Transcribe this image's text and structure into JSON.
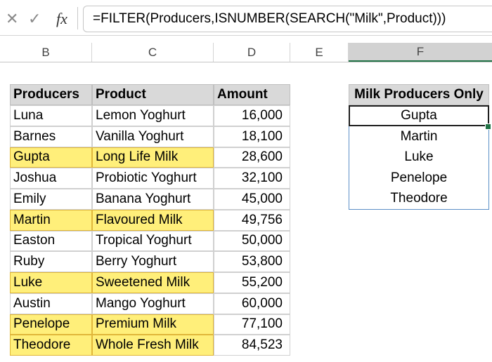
{
  "formula_bar": {
    "cancel_icon": "close-icon",
    "enter_icon": "check-icon",
    "function_label": "fx",
    "formula": "=FILTER(Producers,ISNUMBER(SEARCH(\"Milk\",Product)))"
  },
  "column_headers": {
    "B": "B",
    "C": "C",
    "D": "D",
    "E": "E",
    "F": "F",
    "selected": "F"
  },
  "table": {
    "headers": {
      "producers": "Producers",
      "product": "Product",
      "amount": "Amount"
    },
    "rows": [
      {
        "producer": "Luna",
        "product": "Lemon Yoghurt",
        "amount": "16,000",
        "milk": false
      },
      {
        "producer": "Barnes",
        "product": "Vanilla Yoghurt",
        "amount": "18,100",
        "milk": false
      },
      {
        "producer": "Gupta",
        "product": "Long Life Milk",
        "amount": "28,600",
        "milk": true
      },
      {
        "producer": "Joshua",
        "product": "Probiotic Yoghurt",
        "amount": "32,100",
        "milk": false
      },
      {
        "producer": "Emily",
        "product": "Banana Yoghurt",
        "amount": "45,000",
        "milk": false
      },
      {
        "producer": "Martin",
        "product": "Flavoured Milk",
        "amount": "49,756",
        "milk": true
      },
      {
        "producer": "Easton",
        "product": "Tropical Yoghurt",
        "amount": "50,000",
        "milk": false
      },
      {
        "producer": "Ruby",
        "product": "Berry Yoghurt",
        "amount": "53,800",
        "milk": false
      },
      {
        "producer": "Luke",
        "product": "Sweetened Milk",
        "amount": "55,200",
        "milk": true
      },
      {
        "producer": "Austin",
        "product": "Mango Yoghurt",
        "amount": "60,000",
        "milk": false
      },
      {
        "producer": "Penelope",
        "product": "Premium Milk",
        "amount": "77,100",
        "milk": true
      },
      {
        "producer": "Theodore",
        "product": "Whole Fresh Milk",
        "amount": "84,523",
        "milk": true
      }
    ]
  },
  "result": {
    "header": "Milk Producers Only",
    "values": [
      "Gupta",
      "Martin",
      "Luke",
      "Penelope",
      "Theodore"
    ]
  },
  "colors": {
    "highlight": "#ffef7a",
    "highlight_border": "#e0b63a",
    "header_fill": "#d9d9d9",
    "spill_border": "#5b8fc7",
    "excel_green": "#217346"
  }
}
